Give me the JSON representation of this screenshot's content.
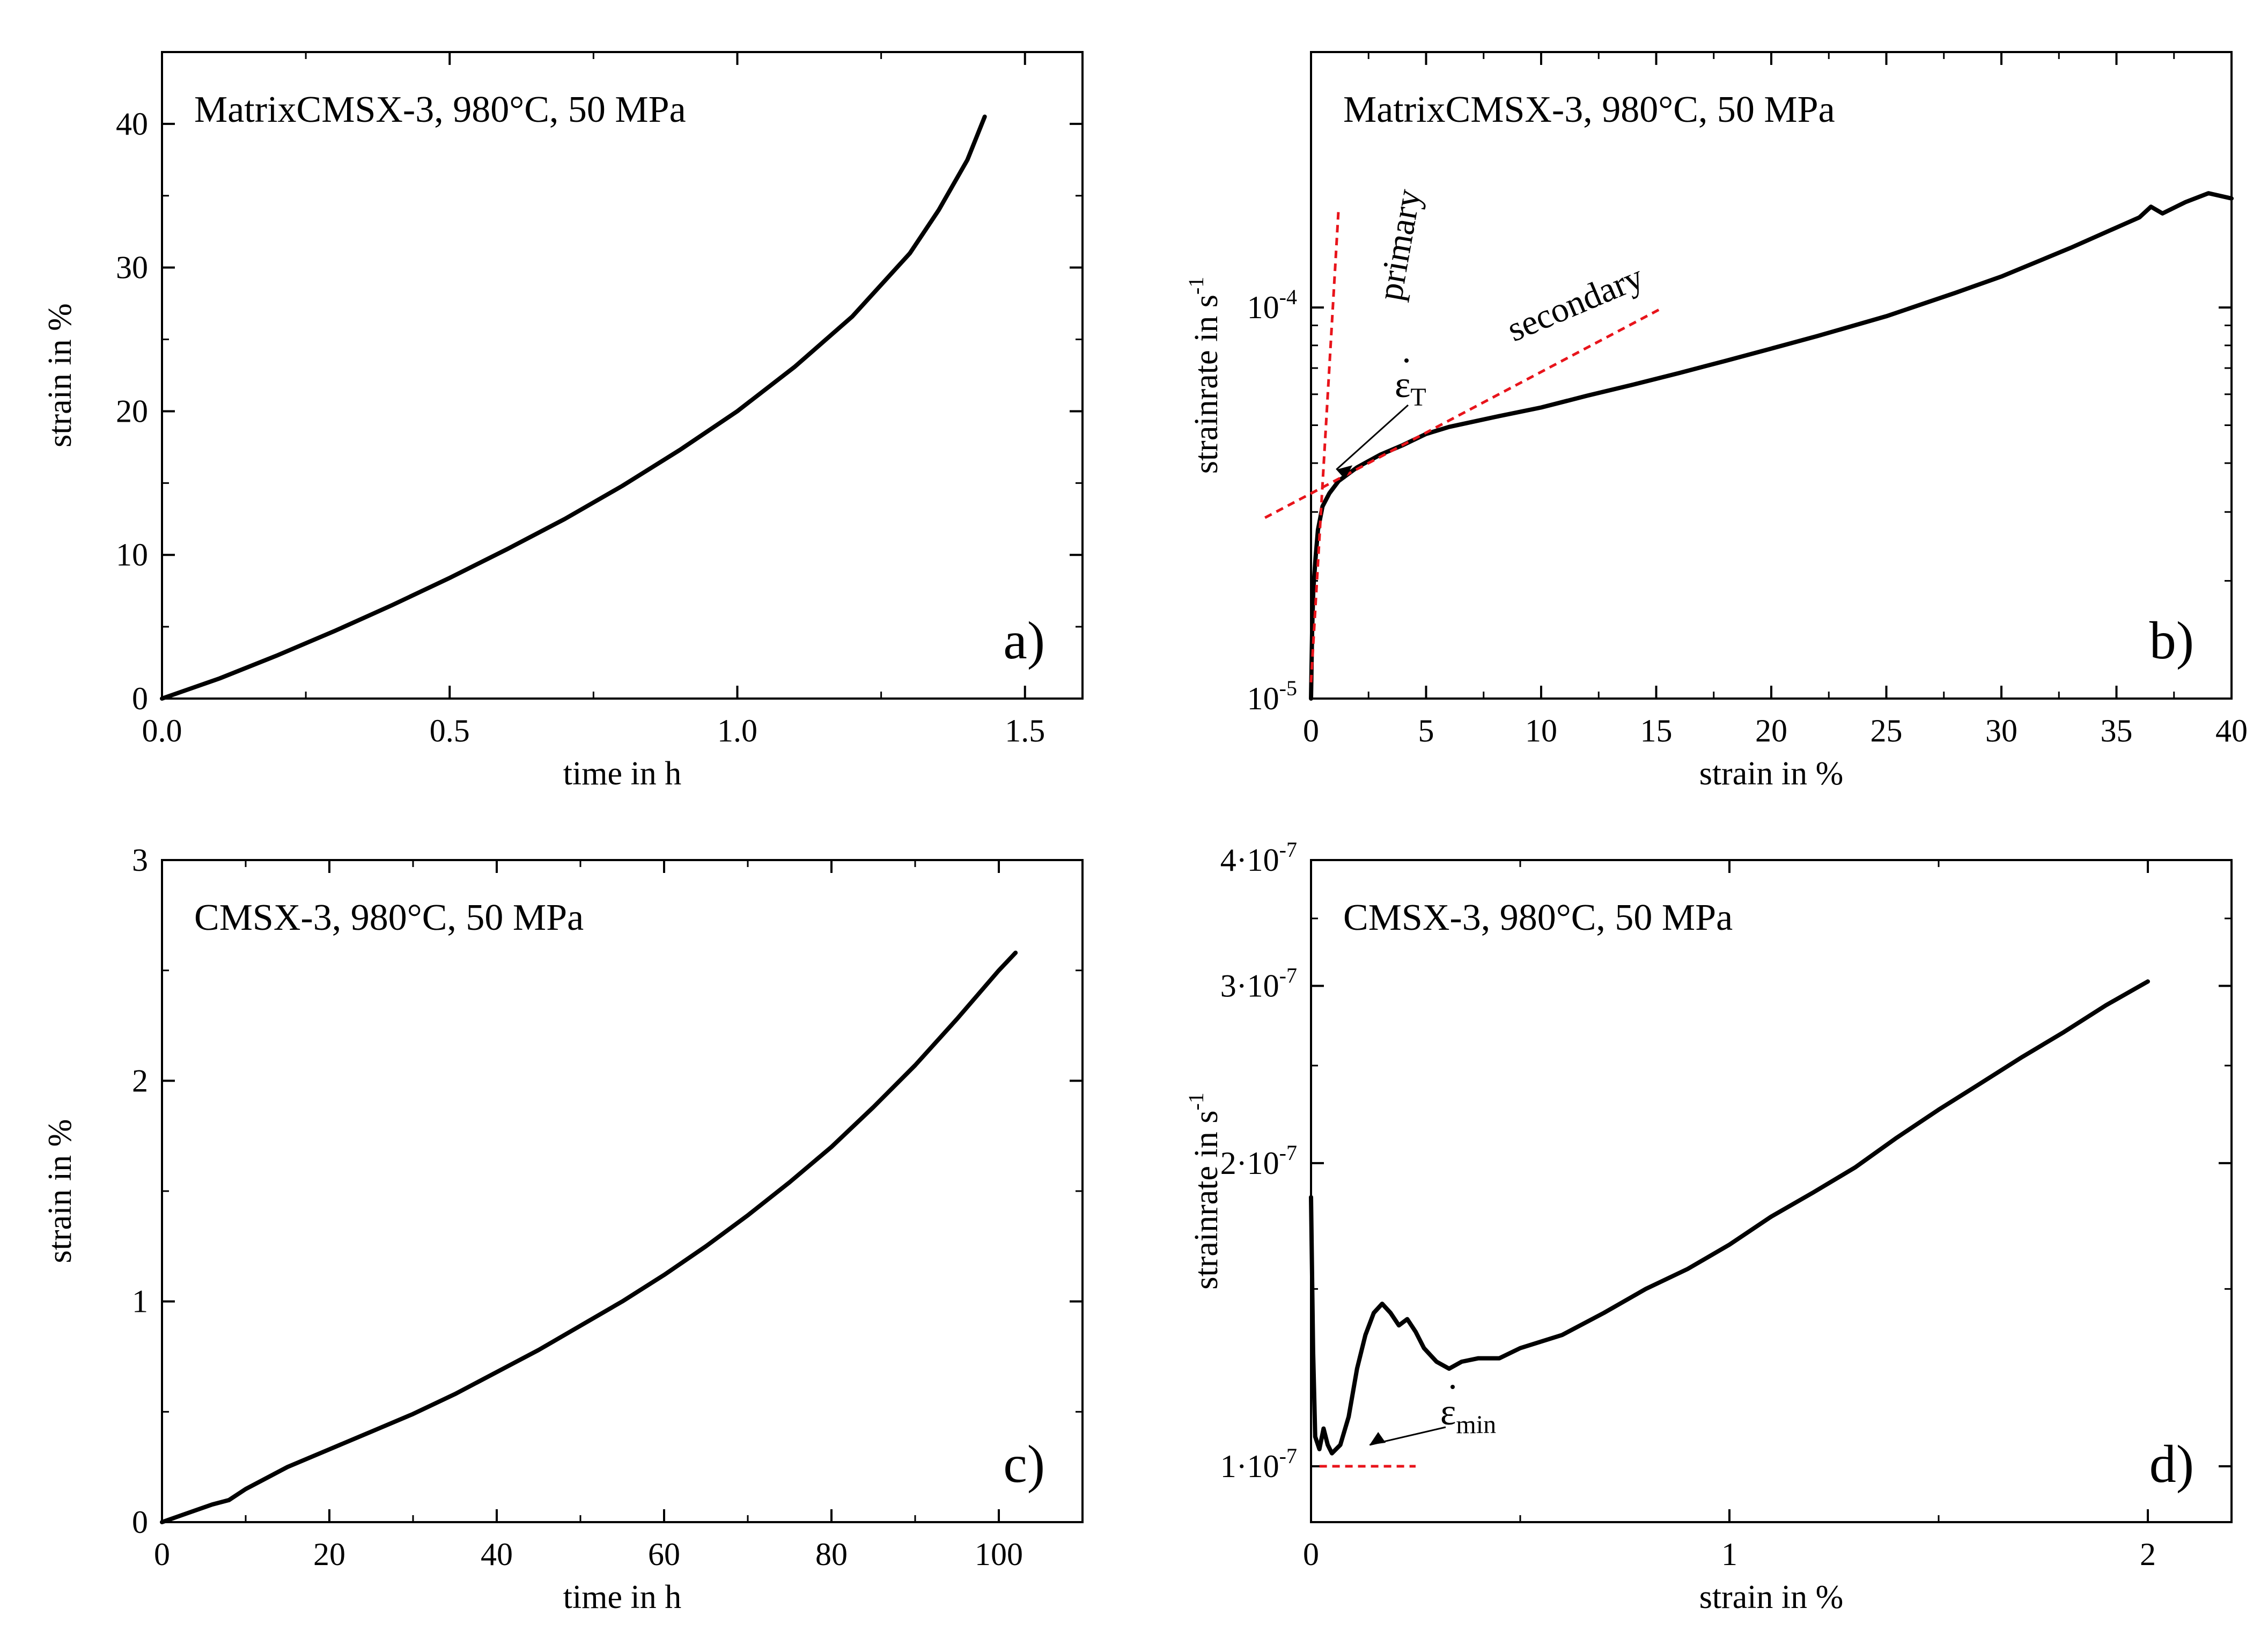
{
  "colors": {
    "axis": "#000000",
    "curve": "#000000",
    "annotation": "#e8141b"
  },
  "chart_data": [
    {
      "id": "a",
      "type": "line",
      "panel_label": "a)",
      "title": "MatrixCMSX-3, 980°C, 50 MPa",
      "xlabel": "time in h",
      "ylabel": "strain in %",
      "xlim": [
        0,
        1.6
      ],
      "ylim": [
        0,
        45
      ],
      "xticks": [
        0,
        0.5,
        1.0,
        1.5
      ],
      "xtick_labels": [
        "0.0",
        "0.5",
        "1.0",
        "1.5"
      ],
      "yticks": [
        0,
        10,
        20,
        30,
        40
      ],
      "ytick_labels": [
        "0",
        "10",
        "20",
        "30",
        "40"
      ],
      "series": [
        {
          "name": "MatrixCMSX-3",
          "x": [
            0,
            0.1,
            0.2,
            0.3,
            0.4,
            0.5,
            0.6,
            0.7,
            0.8,
            0.9,
            1.0,
            1.1,
            1.2,
            1.3,
            1.35,
            1.4,
            1.43
          ],
          "y": [
            0,
            1.4,
            3.0,
            4.7,
            6.5,
            8.4,
            10.4,
            12.5,
            14.8,
            17.3,
            20.0,
            23.1,
            26.6,
            31.0,
            34.0,
            37.5,
            40.5
          ]
        }
      ]
    },
    {
      "id": "b",
      "type": "line",
      "panel_label": "b)",
      "title": "MatrixCMSX-3, 980°C, 50 MPa",
      "xlabel": "strain in %",
      "ylabel": "strainrate in s",
      "ylabel_exponent": "-1",
      "yscale": "log",
      "xlim": [
        0,
        40
      ],
      "ylim": [
        1e-05,
        0.00045
      ],
      "xticks": [
        0,
        5,
        10,
        15,
        20,
        25,
        30,
        35,
        40
      ],
      "xtick_labels": [
        "0",
        "5",
        "10",
        "15",
        "20",
        "25",
        "30",
        "35",
        "40"
      ],
      "yticks": [
        1e-05,
        0.0001
      ],
      "ytick_bases": [
        "10",
        "10"
      ],
      "ytick_exponents": [
        "-5",
        "-4"
      ],
      "series": [
        {
          "name": "MatrixCMSX-3",
          "x": [
            0,
            0.05,
            0.1,
            0.2,
            0.3,
            0.5,
            0.8,
            1.2,
            2,
            3,
            4,
            5,
            6,
            8,
            10,
            12,
            14,
            16,
            18,
            20,
            22,
            25,
            28,
            30,
            33,
            36,
            36.5,
            37,
            38,
            39,
            40
          ],
          "y": [
            1e-05,
            1.5e-05,
            1.9e-05,
            2.3e-05,
            2.7e-05,
            3.1e-05,
            3.35e-05,
            3.6e-05,
            3.9e-05,
            4.2e-05,
            4.45e-05,
            4.75e-05,
            4.95e-05,
            5.25e-05,
            5.55e-05,
            5.95e-05,
            6.35e-05,
            6.8e-05,
            7.3e-05,
            7.85e-05,
            8.45e-05,
            9.5e-05,
            0.000109,
            0.00012,
            0.000142,
            0.00017,
            0.000181,
            0.000174,
            0.000186,
            0.000196,
            0.00019
          ]
        }
      ],
      "annotations": {
        "primary": "primary",
        "secondary": "secondary",
        "epsilon_dot": "ε",
        "subscript": "T",
        "primary_line": [
          [
            0,
            1.1e-05
          ],
          [
            1.2,
            0.00018
          ]
        ],
        "secondary_line": [
          [
            -2,
            2.9e-05
          ],
          [
            15.3,
            0.0001
          ]
        ],
        "pointer_to": [
          1.1,
          3.85e-05
        ]
      }
    },
    {
      "id": "c",
      "type": "line",
      "panel_label": "c)",
      "title": "CMSX-3, 980°C, 50 MPa",
      "xlabel": "time in h",
      "ylabel": "strain in %",
      "xlim": [
        0,
        110
      ],
      "ylim": [
        0,
        3
      ],
      "xticks": [
        0,
        20,
        40,
        60,
        80,
        100
      ],
      "xtick_labels": [
        "0",
        "20",
        "40",
        "60",
        "80",
        "100"
      ],
      "yticks": [
        0,
        1,
        2,
        3
      ],
      "ytick_labels": [
        "0",
        "1",
        "2",
        "3"
      ],
      "series": [
        {
          "name": "CMSX-3",
          "x": [
            0,
            3,
            6,
            8,
            10,
            15,
            20,
            25,
            30,
            35,
            40,
            45,
            50,
            55,
            60,
            65,
            70,
            75,
            80,
            85,
            90,
            95,
            100,
            102
          ],
          "y": [
            0,
            0.04,
            0.08,
            0.1,
            0.15,
            0.25,
            0.33,
            0.41,
            0.49,
            0.58,
            0.68,
            0.78,
            0.89,
            1.0,
            1.12,
            1.25,
            1.39,
            1.54,
            1.7,
            1.88,
            2.07,
            2.28,
            2.5,
            2.58
          ]
        }
      ]
    },
    {
      "id": "d",
      "type": "line",
      "panel_label": "d)",
      "title": "CMSX-3, 980°C, 50 MPa",
      "xlabel": "strain in %",
      "ylabel": "strainrate in s",
      "ylabel_exponent": "-1",
      "yscale": "log",
      "xlim": [
        0,
        2.2
      ],
      "ylim": [
        8.8e-08,
        4e-07
      ],
      "xticks": [
        0,
        1,
        2
      ],
      "xtick_labels": [
        "0",
        "1",
        "2"
      ],
      "yticks": [
        1e-07,
        2e-07,
        3e-07,
        4e-07
      ],
      "ytick_bases": [
        "1·10",
        "2·10",
        "3·10",
        "4·10"
      ],
      "ytick_exponents": [
        "-7",
        "-7",
        "-7",
        "-7"
      ],
      "series": [
        {
          "name": "CMSX-3",
          "x": [
            0,
            0.005,
            0.01,
            0.02,
            0.03,
            0.04,
            0.05,
            0.07,
            0.09,
            0.11,
            0.13,
            0.15,
            0.17,
            0.19,
            0.21,
            0.23,
            0.25,
            0.27,
            0.3,
            0.33,
            0.36,
            0.4,
            0.45,
            0.5,
            0.6,
            0.7,
            0.8,
            0.9,
            1.0,
            1.1,
            1.2,
            1.3,
            1.4,
            1.5,
            1.6,
            1.7,
            1.8,
            1.9,
            2.0
          ],
          "y": [
            1.85e-07,
            1.3e-07,
            1.07e-07,
            1.04e-07,
            1.09e-07,
            1.05e-07,
            1.03e-07,
            1.05e-07,
            1.12e-07,
            1.25e-07,
            1.35e-07,
            1.42e-07,
            1.45e-07,
            1.42e-07,
            1.38e-07,
            1.4e-07,
            1.36e-07,
            1.31e-07,
            1.27e-07,
            1.25e-07,
            1.27e-07,
            1.28e-07,
            1.28e-07,
            1.31e-07,
            1.35e-07,
            1.42e-07,
            1.5e-07,
            1.57e-07,
            1.66e-07,
            1.77e-07,
            1.87e-07,
            1.98e-07,
            2.12e-07,
            2.26e-07,
            2.4e-07,
            2.55e-07,
            2.7e-07,
            2.87e-07,
            3.03e-07
          ]
        }
      ],
      "annotations": {
        "epsilon_dot": "ε",
        "subscript": "min",
        "min_line": [
          [
            0.02,
            1e-07
          ],
          [
            0.25,
            1e-07
          ]
        ],
        "pointer_to": [
          0.14,
          1.05e-07
        ]
      }
    }
  ]
}
